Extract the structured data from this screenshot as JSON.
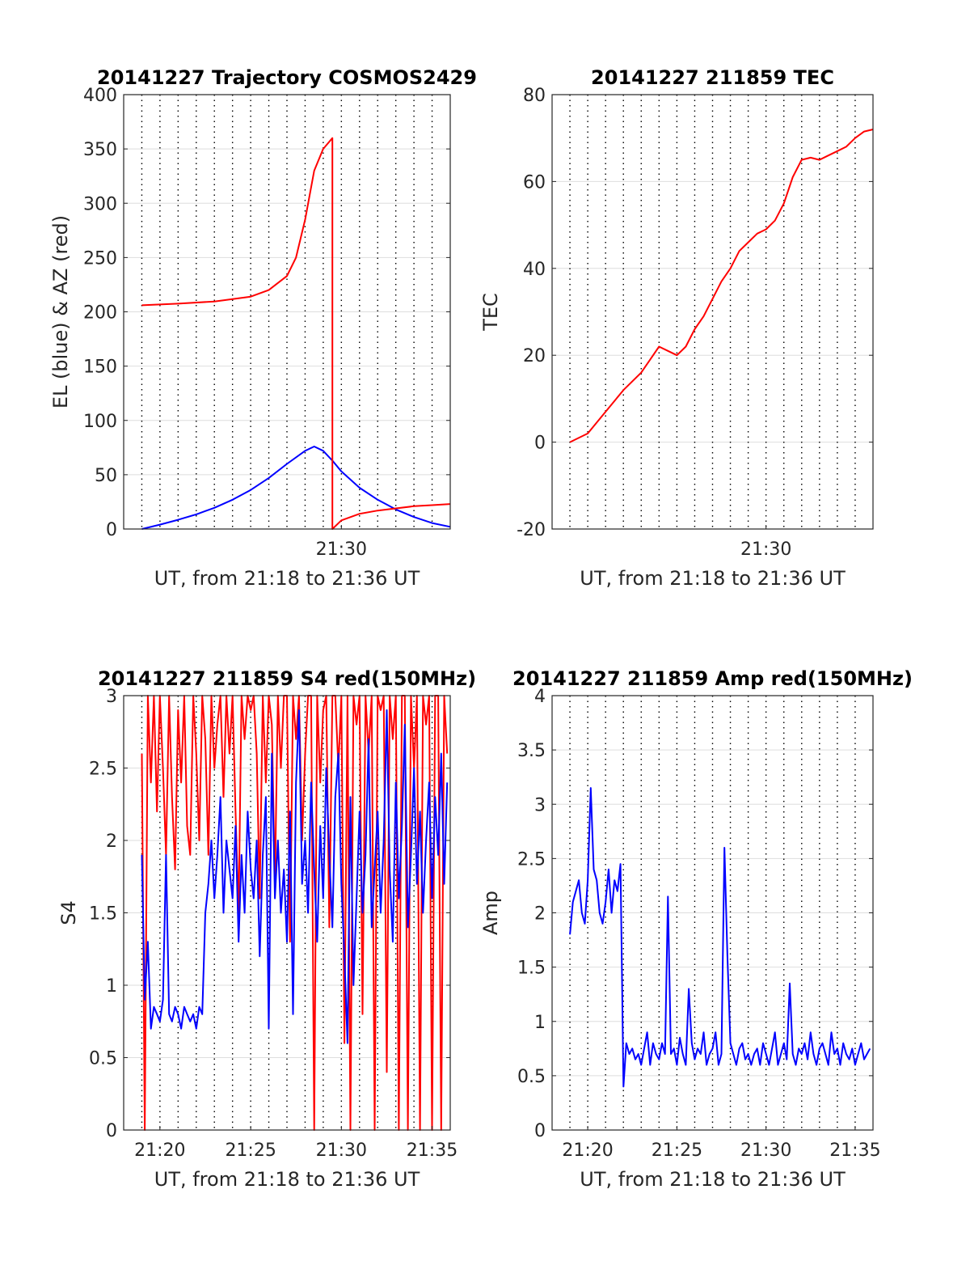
{
  "colors": {
    "el": "#0000ff",
    "az": "#ff0000",
    "tec": "#ff0000",
    "s4_red": "#ff0000",
    "s4_blue": "#0000ff",
    "amp": "#0000ff",
    "grid_h": "#dedede",
    "grid_v": "#000000"
  },
  "chart_data": [
    {
      "type": "line",
      "title": "20141227 Trajectory COSMOS2429",
      "xlabel": "UT, from 21:18 to 21:36 UT",
      "ylabel": "EL (blue) & AZ (red)",
      "xlim": [
        21.3,
        21.6
      ],
      "ylim": [
        0,
        400
      ],
      "xticks": [
        21.5
      ],
      "xticklabels": [
        "21:30"
      ],
      "yticks": [
        0,
        50,
        100,
        150,
        200,
        250,
        300,
        350,
        400
      ],
      "yticklabels": [
        "0",
        "50",
        "100",
        "150",
        "200",
        "250",
        "300",
        "350",
        "400"
      ],
      "xgrid_minutes": [
        19,
        20,
        21,
        22,
        23,
        24,
        25,
        26,
        27,
        28,
        29,
        30,
        31,
        32,
        33,
        34,
        35
      ],
      "series": [
        {
          "name": "EL (blue)",
          "color": "blue",
          "x": [
            21.3167,
            21.3333,
            21.35,
            21.3667,
            21.3833,
            21.4,
            21.4167,
            21.4333,
            21.45,
            21.4667,
            21.475,
            21.4833,
            21.4917,
            21.5,
            21.5167,
            21.5333,
            21.55,
            21.5667,
            21.5833,
            21.6
          ],
          "y": [
            0,
            4,
            8.5,
            13.5,
            19.5,
            27,
            36,
            47,
            60,
            72,
            76,
            72,
            63,
            53,
            38,
            27,
            18,
            11,
            5.5,
            2
          ]
        },
        {
          "name": "AZ (red)",
          "color": "red",
          "x": [
            21.3167,
            21.35,
            21.3833,
            21.4167,
            21.4333,
            21.45,
            21.4583,
            21.4667,
            21.475,
            21.4833,
            21.4917,
            21.4917,
            21.5,
            21.5167,
            21.5333,
            21.55,
            21.5667,
            21.5833,
            21.6
          ],
          "y": [
            206,
            207.5,
            209.5,
            214,
            220,
            233,
            250,
            285,
            330,
            350,
            360,
            0,
            8,
            14,
            17,
            19,
            21,
            22,
            23
          ]
        }
      ]
    },
    {
      "type": "line",
      "title": "20141227 211859 TEC",
      "xlabel": "UT, from 21:18 to 21:36 UT",
      "ylabel": "TEC",
      "xlim": [
        21.3,
        21.6
      ],
      "ylim": [
        -20,
        80
      ],
      "xticks": [
        21.5
      ],
      "xticklabels": [
        "21:30"
      ],
      "yticks": [
        -20,
        0,
        20,
        40,
        60,
        80
      ],
      "yticklabels": [
        "-20",
        "0",
        "20",
        "40",
        "60",
        "80"
      ],
      "xgrid_minutes": [
        19,
        20,
        21,
        22,
        23,
        24,
        25,
        26,
        27,
        28,
        29,
        30,
        31,
        32,
        33,
        34,
        35
      ],
      "series": [
        {
          "name": "TEC",
          "color": "red",
          "x": [
            21.3167,
            21.3333,
            21.35,
            21.3667,
            21.3833,
            21.3917,
            21.4,
            21.4083,
            21.4167,
            21.425,
            21.4333,
            21.4417,
            21.45,
            21.4583,
            21.4667,
            21.475,
            21.4833,
            21.4917,
            21.5,
            21.5083,
            21.5167,
            21.525,
            21.5333,
            21.5417,
            21.55,
            21.5583,
            21.5667,
            21.575,
            21.5833,
            21.5917,
            21.6
          ],
          "y": [
            0,
            2,
            7,
            12,
            16,
            19,
            22,
            21,
            20,
            22,
            26,
            29,
            33,
            37,
            40,
            44,
            46,
            48,
            49,
            51,
            55,
            61,
            65,
            65.5,
            65,
            66,
            67,
            68,
            70,
            71.5,
            72
          ]
        }
      ]
    },
    {
      "type": "line",
      "title": "20141227 211859 S4 red(150MHz)",
      "xlabel": "UT, from 21:18 to 21:36 UT",
      "ylabel": "S4",
      "xlim": [
        21.3,
        21.6
      ],
      "ylim": [
        0,
        3
      ],
      "xticks": [
        21.3333,
        21.4167,
        21.5,
        21.5833
      ],
      "xticklabels": [
        "21:20",
        "21:25",
        "21:30",
        "21:35"
      ],
      "yticks": [
        0,
        0.5,
        1,
        1.5,
        2,
        2.5,
        3
      ],
      "yticklabels": [
        "0",
        "0.5",
        "1",
        "1.5",
        "2",
        "2.5",
        "3"
      ],
      "xgrid_minutes": [
        19,
        20,
        21,
        22,
        23,
        24,
        25,
        26,
        27,
        28,
        29,
        30,
        31,
        32,
        33,
        34,
        35
      ],
      "series": [
        {
          "name": "S4 red",
          "color": "red",
          "x": [
            21.3167,
            21.3194,
            21.3222,
            21.325,
            21.3278,
            21.3306,
            21.3333,
            21.3361,
            21.3389,
            21.3417,
            21.3444,
            21.3472,
            21.35,
            21.3528,
            21.3556,
            21.3583,
            21.3611,
            21.3639,
            21.3667,
            21.3694,
            21.3722,
            21.375,
            21.3778,
            21.3806,
            21.3833,
            21.3861,
            21.3889,
            21.3917,
            21.3944,
            21.3972,
            21.4,
            21.4028,
            21.4056,
            21.4083,
            21.4111,
            21.4139,
            21.4167,
            21.4194,
            21.4222,
            21.425,
            21.4278,
            21.4306,
            21.4333,
            21.4361,
            21.4389,
            21.4417,
            21.4444,
            21.4472,
            21.45,
            21.4528,
            21.4556,
            21.4583,
            21.4611,
            21.4639,
            21.4667,
            21.4694,
            21.4722,
            21.475,
            21.4778,
            21.4806,
            21.4833,
            21.4861,
            21.4889,
            21.4917,
            21.4944,
            21.4972,
            21.5,
            21.5028,
            21.5056,
            21.5083,
            21.5111,
            21.5139,
            21.5167,
            21.5194,
            21.5222,
            21.525,
            21.5278,
            21.5306,
            21.5333,
            21.5361,
            21.5389,
            21.5417,
            21.5444,
            21.5472,
            21.55,
            21.5528,
            21.5556,
            21.5583,
            21.5611,
            21.5639,
            21.5667,
            21.5694,
            21.5722,
            21.575,
            21.5778,
            21.5806,
            21.5833,
            21.5861,
            21.5889,
            21.5917,
            21.5944,
            21.5972
          ],
          "y": [
            2.6,
            0,
            3,
            2.4,
            3,
            2.2,
            3,
            2.5,
            1.9,
            3,
            2.3,
            1.8,
            2.9,
            2.4,
            3,
            2.1,
            1.9,
            3,
            2.6,
            2.0,
            3,
            2.7,
            1.9,
            3,
            2.5,
            2.8,
            3,
            2.3,
            3,
            2.6,
            3,
            2.2,
            1.5,
            3,
            2.7,
            3,
            2.9,
            3,
            2.6,
            1.6,
            3,
            2.4,
            3,
            2.8,
            1.7,
            3,
            2.5,
            3,
            3,
            1.3,
            3,
            2.7,
            3,
            2.0,
            2.6,
            3,
            3,
            0,
            3,
            2.4,
            2.9,
            3,
            1.4,
            3,
            3,
            2.5,
            3,
            0.6,
            3,
            0,
            3,
            2.8,
            3,
            0.8,
            3,
            2.6,
            3,
            0,
            3,
            2.9,
            3,
            0.4,
            3,
            2.7,
            3,
            0,
            3,
            3,
            0,
            3,
            2.5,
            3,
            0,
            3,
            2.8,
            3,
            0,
            3,
            3,
            0,
            3,
            2.6
          ]
        },
        {
          "name": "S4 blue",
          "color": "blue",
          "x": [
            21.3167,
            21.3194,
            21.3222,
            21.325,
            21.3278,
            21.3306,
            21.3333,
            21.3361,
            21.3389,
            21.3417,
            21.3444,
            21.3472,
            21.35,
            21.3528,
            21.3556,
            21.3583,
            21.3611,
            21.3639,
            21.3667,
            21.3694,
            21.3722,
            21.375,
            21.3778,
            21.3806,
            21.3833,
            21.3861,
            21.3889,
            21.3917,
            21.3944,
            21.3972,
            21.4,
            21.4028,
            21.4056,
            21.4083,
            21.4111,
            21.4139,
            21.4167,
            21.4194,
            21.4222,
            21.425,
            21.4278,
            21.4306,
            21.4333,
            21.4361,
            21.4389,
            21.4417,
            21.4444,
            21.4472,
            21.45,
            21.4528,
            21.4556,
            21.4583,
            21.4611,
            21.4639,
            21.4667,
            21.4694,
            21.4722,
            21.475,
            21.4778,
            21.4806,
            21.4833,
            21.4861,
            21.4889,
            21.4917,
            21.4944,
            21.4972,
            21.5,
            21.5028,
            21.5056,
            21.5083,
            21.5111,
            21.5139,
            21.5167,
            21.5194,
            21.5222,
            21.525,
            21.5278,
            21.5306,
            21.5333,
            21.5361,
            21.5389,
            21.5417,
            21.5444,
            21.5472,
            21.55,
            21.5528,
            21.5556,
            21.5583,
            21.5611,
            21.5639,
            21.5667,
            21.5694,
            21.5722,
            21.575,
            21.5778,
            21.5806,
            21.5833,
            21.5861,
            21.5889,
            21.5917,
            21.5944,
            21.5972
          ],
          "y": [
            1.9,
            0.9,
            1.3,
            0.7,
            0.85,
            0.8,
            0.75,
            0.9,
            1.9,
            0.8,
            0.75,
            0.85,
            0.8,
            0.7,
            0.85,
            0.8,
            0.75,
            0.8,
            0.7,
            0.85,
            0.8,
            1.5,
            1.7,
            2.0,
            1.6,
            1.9,
            2.3,
            1.5,
            2.0,
            1.8,
            1.6,
            2.1,
            1.3,
            1.9,
            1.5,
            2.2,
            1.8,
            1.6,
            2.0,
            1.2,
            1.9,
            2.3,
            0.7,
            2.6,
            1.6,
            2.0,
            1.5,
            1.8,
            1.3,
            2.2,
            0.8,
            2.4,
            2.9,
            1.7,
            2.0,
            1.5,
            2.4,
            1.8,
            1.3,
            2.1,
            1.6,
            2.5,
            1.9,
            1.4,
            2.3,
            2.6,
            1.7,
            1.2,
            0.6,
            2.3,
            1.0,
            1.6,
            2.2,
            1.5,
            1.9,
            2.7,
            1.4,
            1.8,
            2.2,
            1.5,
            2.0,
            2.9,
            1.8,
            1.3,
            2.4,
            1.6,
            2.1,
            2.8,
            1.4,
            1.9,
            2.5,
            1.7,
            2.2,
            1.5,
            2.0,
            2.4,
            1.6,
            2.3,
            1.9,
            2.6,
            1.7,
            2.4
          ]
        }
      ]
    },
    {
      "type": "line",
      "title": "20141227 211859 Amp red(150MHz)",
      "xlabel": "UT, from 21:18 to 21:36 UT",
      "ylabel": "Amp",
      "xlim": [
        21.3,
        21.6
      ],
      "ylim": [
        0,
        4
      ],
      "xticks": [
        21.3333,
        21.4167,
        21.5,
        21.5833
      ],
      "xticklabels": [
        "21:20",
        "21:25",
        "21:30",
        "21:35"
      ],
      "yticks": [
        0,
        0.5,
        1,
        1.5,
        2,
        2.5,
        3,
        3.5,
        4
      ],
      "yticklabels": [
        "0",
        "0.5",
        "1",
        "1.5",
        "2",
        "2.5",
        "3",
        "3.5",
        "4"
      ],
      "xgrid_minutes": [
        19,
        20,
        21,
        22,
        23,
        24,
        25,
        26,
        27,
        28,
        29,
        30,
        31,
        32,
        33,
        34,
        35
      ],
      "series": [
        {
          "name": "Amp",
          "color": "blue",
          "x": [
            21.3167,
            21.3194,
            21.3222,
            21.325,
            21.3278,
            21.3306,
            21.3333,
            21.3361,
            21.3389,
            21.3417,
            21.3444,
            21.3472,
            21.35,
            21.3528,
            21.3556,
            21.3583,
            21.3611,
            21.3639,
            21.3667,
            21.3694,
            21.3722,
            21.375,
            21.3778,
            21.3806,
            21.3833,
            21.3861,
            21.3889,
            21.3917,
            21.3944,
            21.3972,
            21.4,
            21.4028,
            21.4056,
            21.4083,
            21.4111,
            21.4139,
            21.4167,
            21.4194,
            21.4222,
            21.425,
            21.4278,
            21.4306,
            21.4333,
            21.4361,
            21.4389,
            21.4417,
            21.4444,
            21.4472,
            21.45,
            21.4528,
            21.4556,
            21.4583,
            21.4611,
            21.4639,
            21.4667,
            21.4694,
            21.4722,
            21.475,
            21.4778,
            21.4806,
            21.4833,
            21.4861,
            21.4889,
            21.4917,
            21.4944,
            21.4972,
            21.5,
            21.5028,
            21.5056,
            21.5083,
            21.5111,
            21.5139,
            21.5167,
            21.5194,
            21.5222,
            21.525,
            21.5278,
            21.5306,
            21.5333,
            21.5361,
            21.5389,
            21.5417,
            21.5444,
            21.5472,
            21.55,
            21.5528,
            21.5556,
            21.5583,
            21.5611,
            21.5639,
            21.5667,
            21.5694,
            21.5722,
            21.575,
            21.5778,
            21.5806,
            21.5833,
            21.5861,
            21.5889,
            21.5917,
            21.5944,
            21.5972
          ],
          "y": [
            1.8,
            2.1,
            2.2,
            2.3,
            2.0,
            1.9,
            2.3,
            3.15,
            2.4,
            2.3,
            2.0,
            1.9,
            2.1,
            2.4,
            2.0,
            2.3,
            2.2,
            2.45,
            0.4,
            0.8,
            0.7,
            0.75,
            0.65,
            0.7,
            0.6,
            0.75,
            0.9,
            0.6,
            0.8,
            0.7,
            0.65,
            0.8,
            0.7,
            2.15,
            0.7,
            0.75,
            0.6,
            0.85,
            0.7,
            0.6,
            1.3,
            0.8,
            0.65,
            0.75,
            0.7,
            0.9,
            0.6,
            0.7,
            0.75,
            0.9,
            0.6,
            0.7,
            2.6,
            1.6,
            0.8,
            0.7,
            0.6,
            0.75,
            0.8,
            0.65,
            0.7,
            0.6,
            0.7,
            0.75,
            0.6,
            0.8,
            0.7,
            0.6,
            0.75,
            0.9,
            0.6,
            0.7,
            0.8,
            0.65,
            1.35,
            0.7,
            0.6,
            0.75,
            0.7,
            0.8,
            0.65,
            0.9,
            0.7,
            0.6,
            0.75,
            0.8,
            0.7,
            0.6,
            0.9,
            0.7,
            0.75,
            0.6,
            0.8,
            0.7,
            0.65,
            0.75,
            0.6,
            0.7,
            0.8,
            0.65,
            0.7,
            0.75
          ]
        }
      ]
    }
  ]
}
